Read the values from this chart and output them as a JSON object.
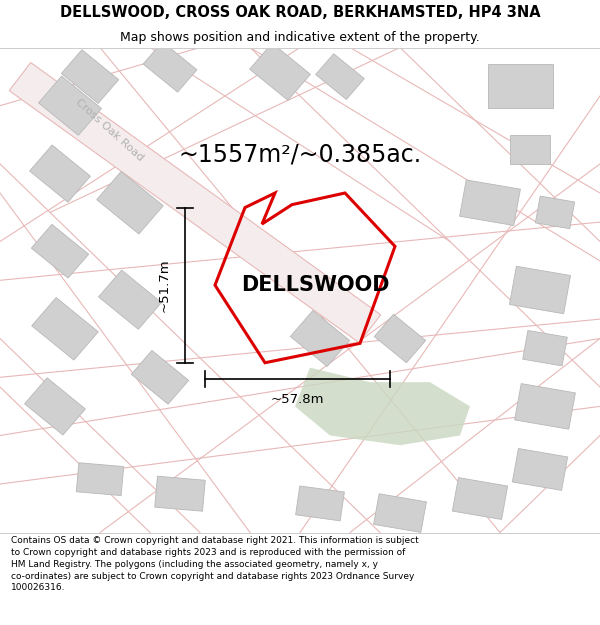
{
  "title": "DELLSWOOD, CROSS OAK ROAD, BERKHAMSTED, HP4 3NA",
  "subtitle": "Map shows position and indicative extent of the property.",
  "footer": "Contains OS data © Crown copyright and database right 2021. This information is subject to Crown copyright and database rights 2023 and is reproduced with the permission of HM Land Registry. The polygons (including the associated geometry, namely x, y co-ordinates) are subject to Crown copyright and database rights 2023 Ordnance Survey 100026316.",
  "area_label": "~1557m²/~0.385ac.",
  "property_name": "DELLSWOOD",
  "width_label": "~57.8m",
  "height_label": "~51.7m",
  "map_bg": "#f2f0ed",
  "road_color": "#e8b8b8",
  "road_fill": "#f5eded",
  "building_color": "#d0d0d0",
  "building_edge": "#b8b8b8",
  "green_color": "#c8d8c0",
  "plot_color": "#dd0000",
  "road_label_color": "#b0b0b0",
  "title_fontsize": 10.5,
  "subtitle_fontsize": 9,
  "footer_fontsize": 6.5,
  "area_label_fontsize": 17,
  "property_name_fontsize": 15,
  "dim_fontsize": 9.5
}
